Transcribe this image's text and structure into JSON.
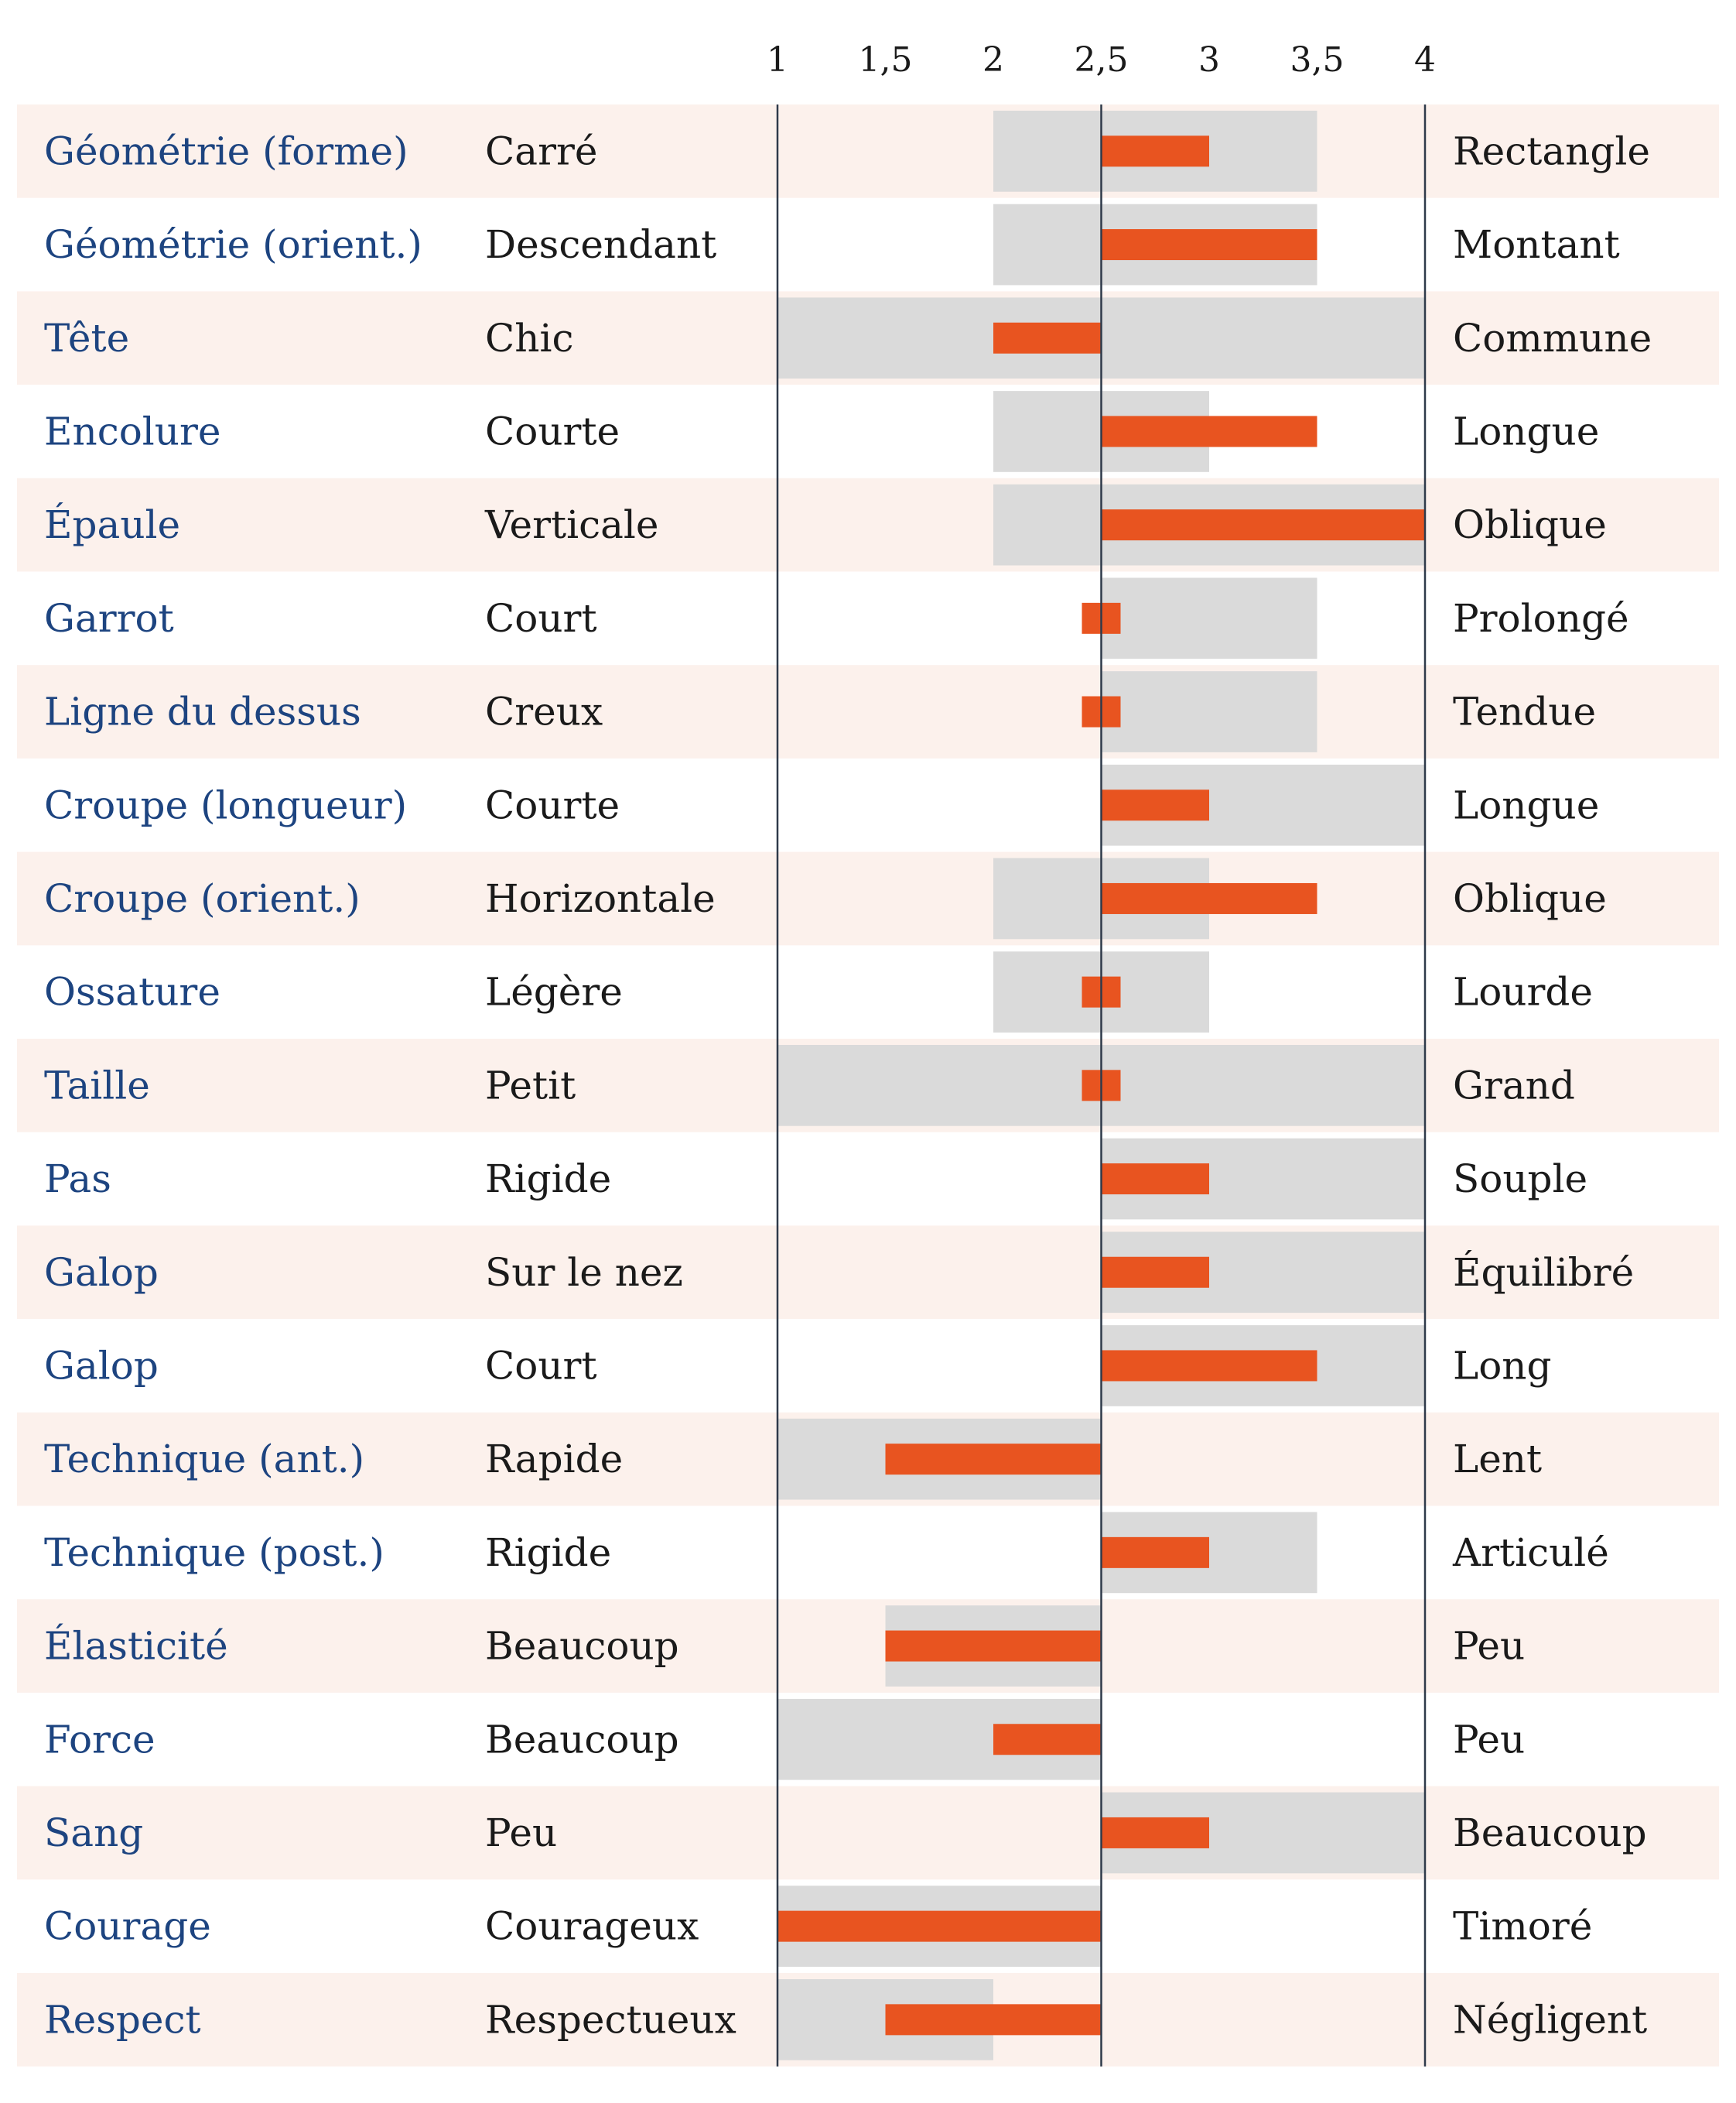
{
  "chart_data": {
    "type": "bar",
    "xlim": [
      1,
      4
    ],
    "tick_values": [
      1,
      1.5,
      2,
      2.5,
      3,
      3.5,
      4
    ],
    "tick_labels": [
      "1",
      "1,5",
      "2",
      "2,5",
      "3",
      "3,5",
      "4"
    ],
    "reference": 2.5,
    "colors": {
      "bar": "#e85420",
      "range": "#dadada",
      "row_alt": "#fcf1ec",
      "axis_line": "#2f3a4a",
      "trait_text": "#1d4480",
      "pole_text": "#1a1a1a"
    },
    "rows": [
      {
        "trait": "Géométrie (forme)",
        "low": "Carré",
        "high": "Rectangle",
        "value": 3,
        "range": [
          2,
          3.5
        ]
      },
      {
        "trait": "Géométrie (orient.)",
        "low": "Descendant",
        "high": "Montant",
        "value": 3.5,
        "range": [
          2,
          3.5
        ]
      },
      {
        "trait": "Tête",
        "low": "Chic",
        "high": "Commune",
        "value": 2,
        "range": [
          1,
          4
        ]
      },
      {
        "trait": "Encolure",
        "low": "Courte",
        "high": "Longue",
        "value": 3.5,
        "range": [
          2,
          3
        ]
      },
      {
        "trait": "Épaule",
        "low": "Verticale",
        "high": "Oblique",
        "value": 4,
        "range": [
          2,
          4
        ]
      },
      {
        "trait": "Garrot",
        "low": "Court",
        "high": "Prolongé",
        "value": 2.5,
        "range": [
          2.5,
          3.5
        ]
      },
      {
        "trait": "Ligne du dessus",
        "low": "Creux",
        "high": "Tendue",
        "value": 2.5,
        "range": [
          2.5,
          3.5
        ]
      },
      {
        "trait": "Croupe (longueur)",
        "low": "Courte",
        "high": "Longue",
        "value": 3,
        "range": [
          2.5,
          4
        ]
      },
      {
        "trait": "Croupe (orient.)",
        "low": "Horizontale",
        "high": "Oblique",
        "value": 3.5,
        "range": [
          2,
          3
        ]
      },
      {
        "trait": "Ossature",
        "low": "Légère",
        "high": "Lourde",
        "value": 2.5,
        "range": [
          2,
          3
        ]
      },
      {
        "trait": "Taille",
        "low": "Petit",
        "high": "Grand",
        "value": 2.5,
        "range": [
          1,
          4
        ]
      },
      {
        "trait": "Pas",
        "low": "Rigide",
        "high": "Souple",
        "value": 3,
        "range": [
          2.5,
          4
        ]
      },
      {
        "trait": "Galop",
        "low": "Sur le nez",
        "high": "Équilibré",
        "value": 3,
        "range": [
          2.5,
          4
        ]
      },
      {
        "trait": "Galop",
        "low": "Court",
        "high": "Long",
        "value": 3.5,
        "range": [
          2.5,
          4
        ]
      },
      {
        "trait": "Technique (ant.)",
        "low": "Rapide",
        "high": "Lent",
        "value": 1.5,
        "range": [
          1,
          2.5
        ]
      },
      {
        "trait": "Technique (post.)",
        "low": "Rigide",
        "high": "Articulé",
        "value": 3,
        "range": [
          2.5,
          3.5
        ]
      },
      {
        "trait": "Élasticité",
        "low": "Beaucoup",
        "high": "Peu",
        "value": 1.5,
        "range": [
          1.5,
          2.5
        ]
      },
      {
        "trait": "Force",
        "low": "Beaucoup",
        "high": "Peu",
        "value": 2,
        "range": [
          1,
          2.5
        ]
      },
      {
        "trait": "Sang",
        "low": "Peu",
        "high": "Beaucoup",
        "value": 3,
        "range": [
          2.5,
          4
        ]
      },
      {
        "trait": "Courage",
        "low": "Courageux",
        "high": "Timoré",
        "value": 1,
        "range": [
          1,
          2.5
        ]
      },
      {
        "trait": "Respect",
        "low": "Respectueux",
        "high": "Négligent",
        "value": 1.5,
        "range": [
          1,
          2
        ]
      }
    ]
  }
}
